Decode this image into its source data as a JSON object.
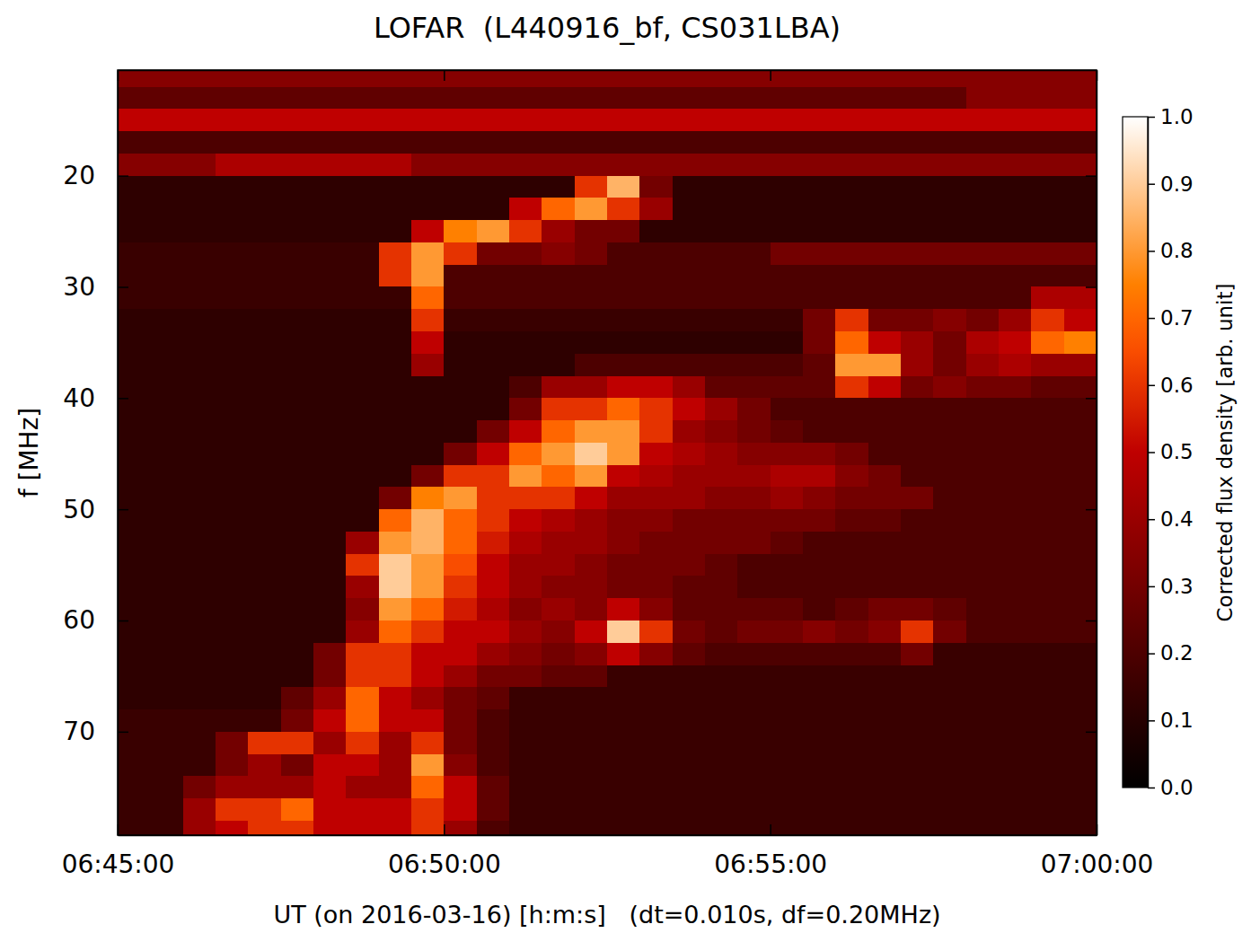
{
  "chart_data": {
    "type": "heatmap",
    "title": "LOFAR  (L440916_bf, CS031LBA)",
    "x_label": "UT (on 2016-03-16) [h:m:s]   (dt=0.010s, df=0.20MHz)",
    "y_label": "f [MHz]",
    "xlim": [
      "06:45:00",
      "07:00:00"
    ],
    "xticks": [
      "06:45:00",
      "06:50:00",
      "06:55:00",
      "07:00:00"
    ],
    "ylim": [
      79.3,
      10.5
    ],
    "yticks": [
      20,
      30,
      40,
      50,
      60,
      70
    ],
    "x_bins": [
      "06:45:00",
      "06:45:30",
      "06:46:00",
      "06:46:30",
      "06:47:00",
      "06:47:30",
      "06:48:00",
      "06:48:30",
      "06:49:00",
      "06:49:30",
      "06:50:00",
      "06:50:30",
      "06:51:00",
      "06:51:30",
      "06:52:00",
      "06:52:30",
      "06:53:00",
      "06:53:30",
      "06:54:00",
      "06:54:30",
      "06:55:00",
      "06:55:30",
      "06:56:00",
      "06:56:30",
      "06:57:00",
      "06:57:30",
      "06:58:00",
      "06:58:30",
      "06:59:00",
      "06:59:30",
      "07:00:00"
    ],
    "y_bins": [
      10,
      12,
      14,
      16,
      18,
      20,
      22,
      24,
      26,
      28,
      30,
      32,
      34,
      36,
      38,
      40,
      42,
      44,
      46,
      48,
      50,
      52,
      54,
      56,
      58,
      60,
      62,
      64,
      66,
      68,
      70,
      72,
      74,
      76,
      78,
      80
    ],
    "cells": [
      [
        0.35,
        0.35,
        0.35,
        0.35,
        0.35,
        0.35,
        0.35,
        0.35,
        0.35,
        0.35,
        0.35,
        0.35,
        0.35,
        0.35,
        0.35,
        0.35,
        0.35,
        0.35,
        0.35,
        0.35,
        0.35,
        0.35,
        0.35,
        0.35,
        0.35,
        0.35,
        0.35,
        0.35,
        0.35,
        0.35
      ],
      [
        0.25,
        0.25,
        0.25,
        0.25,
        0.25,
        0.25,
        0.25,
        0.25,
        0.25,
        0.25,
        0.25,
        0.25,
        0.25,
        0.25,
        0.25,
        0.25,
        0.25,
        0.25,
        0.25,
        0.25,
        0.25,
        0.25,
        0.25,
        0.25,
        0.25,
        0.25,
        0.35,
        0.35,
        0.35,
        0.35
      ],
      [
        0.5,
        0.5,
        0.5,
        0.5,
        0.5,
        0.5,
        0.5,
        0.5,
        0.5,
        0.5,
        0.5,
        0.5,
        0.5,
        0.5,
        0.5,
        0.5,
        0.5,
        0.5,
        0.5,
        0.5,
        0.5,
        0.5,
        0.5,
        0.5,
        0.5,
        0.5,
        0.5,
        0.5,
        0.5,
        0.5
      ],
      [
        0.2,
        0.2,
        0.2,
        0.2,
        0.2,
        0.2,
        0.2,
        0.2,
        0.2,
        0.2,
        0.2,
        0.2,
        0.2,
        0.2,
        0.2,
        0.2,
        0.2,
        0.2,
        0.2,
        0.2,
        0.2,
        0.2,
        0.2,
        0.2,
        0.2,
        0.2,
        0.2,
        0.2,
        0.2,
        0.2
      ],
      [
        0.35,
        0.35,
        0.35,
        0.45,
        0.45,
        0.45,
        0.45,
        0.45,
        0.45,
        0.35,
        0.35,
        0.35,
        0.35,
        0.35,
        0.35,
        0.35,
        0.35,
        0.35,
        0.35,
        0.35,
        0.35,
        0.35,
        0.35,
        0.35,
        0.35,
        0.35,
        0.35,
        0.35,
        0.35,
        0.35
      ],
      [
        0.12,
        0.12,
        0.12,
        0.12,
        0.12,
        0.12,
        0.12,
        0.12,
        0.12,
        0.12,
        0.12,
        0.12,
        0.12,
        0.12,
        0.6,
        0.85,
        0.3,
        0.12,
        0.12,
        0.12,
        0.12,
        0.12,
        0.12,
        0.12,
        0.12,
        0.12,
        0.12,
        0.12,
        0.12,
        0.12
      ],
      [
        0.12,
        0.12,
        0.12,
        0.12,
        0.12,
        0.12,
        0.12,
        0.12,
        0.12,
        0.12,
        0.12,
        0.12,
        0.5,
        0.7,
        0.8,
        0.6,
        0.4,
        0.12,
        0.12,
        0.12,
        0.12,
        0.12,
        0.12,
        0.12,
        0.12,
        0.12,
        0.12,
        0.12,
        0.12,
        0.12
      ],
      [
        0.12,
        0.12,
        0.12,
        0.12,
        0.12,
        0.12,
        0.12,
        0.12,
        0.12,
        0.5,
        0.75,
        0.8,
        0.6,
        0.4,
        0.3,
        0.3,
        0.12,
        0.12,
        0.12,
        0.12,
        0.12,
        0.12,
        0.12,
        0.12,
        0.12,
        0.12,
        0.12,
        0.12,
        0.12,
        0.12
      ],
      [
        0.15,
        0.15,
        0.15,
        0.15,
        0.15,
        0.15,
        0.15,
        0.15,
        0.6,
        0.8,
        0.6,
        0.3,
        0.3,
        0.35,
        0.3,
        0.2,
        0.2,
        0.2,
        0.2,
        0.2,
        0.3,
        0.3,
        0.3,
        0.3,
        0.3,
        0.3,
        0.3,
        0.3,
        0.3,
        0.3
      ],
      [
        0.15,
        0.15,
        0.15,
        0.15,
        0.15,
        0.15,
        0.15,
        0.15,
        0.6,
        0.8,
        0.2,
        0.2,
        0.2,
        0.2,
        0.2,
        0.2,
        0.2,
        0.2,
        0.2,
        0.2,
        0.2,
        0.2,
        0.2,
        0.2,
        0.2,
        0.2,
        0.2,
        0.2,
        0.2,
        0.2
      ],
      [
        0.15,
        0.15,
        0.15,
        0.15,
        0.15,
        0.15,
        0.15,
        0.15,
        0.15,
        0.7,
        0.2,
        0.2,
        0.2,
        0.2,
        0.2,
        0.2,
        0.2,
        0.2,
        0.2,
        0.2,
        0.2,
        0.2,
        0.2,
        0.2,
        0.2,
        0.2,
        0.2,
        0.2,
        0.45,
        0.45
      ],
      [
        0.12,
        0.12,
        0.12,
        0.12,
        0.12,
        0.12,
        0.12,
        0.12,
        0.12,
        0.6,
        0.15,
        0.15,
        0.15,
        0.15,
        0.15,
        0.15,
        0.15,
        0.15,
        0.15,
        0.15,
        0.15,
        0.3,
        0.6,
        0.3,
        0.3,
        0.35,
        0.3,
        0.4,
        0.6,
        0.5
      ],
      [
        0.12,
        0.12,
        0.12,
        0.12,
        0.12,
        0.12,
        0.12,
        0.12,
        0.12,
        0.5,
        0.12,
        0.12,
        0.12,
        0.12,
        0.12,
        0.12,
        0.12,
        0.12,
        0.12,
        0.12,
        0.12,
        0.3,
        0.7,
        0.5,
        0.4,
        0.3,
        0.45,
        0.5,
        0.7,
        0.75
      ],
      [
        0.12,
        0.12,
        0.12,
        0.12,
        0.12,
        0.12,
        0.12,
        0.12,
        0.12,
        0.4,
        0.12,
        0.12,
        0.12,
        0.12,
        0.2,
        0.2,
        0.2,
        0.2,
        0.2,
        0.2,
        0.2,
        0.25,
        0.8,
        0.8,
        0.4,
        0.3,
        0.4,
        0.45,
        0.4,
        0.4
      ],
      [
        0.12,
        0.12,
        0.12,
        0.12,
        0.12,
        0.12,
        0.12,
        0.12,
        0.12,
        0.12,
        0.12,
        0.12,
        0.2,
        0.4,
        0.4,
        0.5,
        0.5,
        0.4,
        0.25,
        0.25,
        0.25,
        0.25,
        0.6,
        0.5,
        0.3,
        0.35,
        0.3,
        0.3,
        0.25,
        0.25
      ],
      [
        0.12,
        0.12,
        0.12,
        0.12,
        0.12,
        0.12,
        0.12,
        0.12,
        0.12,
        0.12,
        0.12,
        0.12,
        0.3,
        0.6,
        0.6,
        0.7,
        0.6,
        0.5,
        0.4,
        0.3,
        0.2,
        0.2,
        0.2,
        0.2,
        0.2,
        0.2,
        0.2,
        0.2,
        0.2,
        0.2
      ],
      [
        0.12,
        0.12,
        0.12,
        0.12,
        0.12,
        0.12,
        0.12,
        0.12,
        0.12,
        0.12,
        0.12,
        0.3,
        0.5,
        0.7,
        0.8,
        0.8,
        0.6,
        0.4,
        0.35,
        0.3,
        0.25,
        0.2,
        0.2,
        0.2,
        0.2,
        0.2,
        0.2,
        0.2,
        0.2,
        0.2
      ],
      [
        0.12,
        0.12,
        0.12,
        0.12,
        0.12,
        0.12,
        0.12,
        0.12,
        0.12,
        0.12,
        0.3,
        0.5,
        0.7,
        0.8,
        0.9,
        0.8,
        0.5,
        0.45,
        0.4,
        0.35,
        0.35,
        0.35,
        0.3,
        0.2,
        0.2,
        0.2,
        0.2,
        0.2,
        0.2,
        0.2
      ],
      [
        0.12,
        0.12,
        0.12,
        0.12,
        0.12,
        0.12,
        0.12,
        0.12,
        0.12,
        0.3,
        0.6,
        0.6,
        0.8,
        0.7,
        0.8,
        0.5,
        0.45,
        0.4,
        0.4,
        0.4,
        0.45,
        0.45,
        0.35,
        0.3,
        0.2,
        0.2,
        0.2,
        0.2,
        0.2,
        0.2
      ],
      [
        0.12,
        0.12,
        0.12,
        0.12,
        0.12,
        0.12,
        0.12,
        0.12,
        0.3,
        0.75,
        0.8,
        0.6,
        0.6,
        0.6,
        0.5,
        0.4,
        0.4,
        0.4,
        0.35,
        0.35,
        0.4,
        0.35,
        0.3,
        0.3,
        0.3,
        0.2,
        0.2,
        0.2,
        0.2,
        0.2
      ],
      [
        0.12,
        0.12,
        0.12,
        0.12,
        0.12,
        0.12,
        0.12,
        0.12,
        0.7,
        0.85,
        0.7,
        0.6,
        0.5,
        0.45,
        0.4,
        0.35,
        0.35,
        0.3,
        0.3,
        0.3,
        0.3,
        0.3,
        0.25,
        0.25,
        0.2,
        0.2,
        0.2,
        0.2,
        0.2,
        0.2
      ],
      [
        0.12,
        0.12,
        0.12,
        0.12,
        0.12,
        0.12,
        0.12,
        0.4,
        0.8,
        0.85,
        0.7,
        0.55,
        0.45,
        0.4,
        0.4,
        0.35,
        0.3,
        0.3,
        0.3,
        0.3,
        0.25,
        0.2,
        0.2,
        0.2,
        0.2,
        0.2,
        0.2,
        0.2,
        0.2,
        0.2
      ],
      [
        0.12,
        0.12,
        0.12,
        0.12,
        0.12,
        0.12,
        0.12,
        0.6,
        0.9,
        0.8,
        0.65,
        0.5,
        0.4,
        0.4,
        0.35,
        0.3,
        0.3,
        0.3,
        0.25,
        0.2,
        0.2,
        0.2,
        0.2,
        0.2,
        0.2,
        0.2,
        0.2,
        0.2,
        0.2,
        0.2
      ],
      [
        0.12,
        0.12,
        0.12,
        0.12,
        0.12,
        0.12,
        0.12,
        0.4,
        0.9,
        0.8,
        0.6,
        0.5,
        0.4,
        0.35,
        0.35,
        0.3,
        0.3,
        0.25,
        0.25,
        0.2,
        0.2,
        0.2,
        0.2,
        0.2,
        0.2,
        0.2,
        0.2,
        0.2,
        0.2,
        0.2
      ],
      [
        0.12,
        0.12,
        0.12,
        0.12,
        0.12,
        0.12,
        0.12,
        0.35,
        0.8,
        0.7,
        0.55,
        0.45,
        0.35,
        0.4,
        0.35,
        0.5,
        0.35,
        0.25,
        0.25,
        0.25,
        0.25,
        0.2,
        0.25,
        0.3,
        0.3,
        0.25,
        0.2,
        0.2,
        0.2,
        0.2
      ],
      [
        0.12,
        0.12,
        0.12,
        0.12,
        0.12,
        0.12,
        0.12,
        0.4,
        0.7,
        0.6,
        0.5,
        0.5,
        0.4,
        0.35,
        0.5,
        0.9,
        0.6,
        0.3,
        0.25,
        0.3,
        0.3,
        0.35,
        0.3,
        0.35,
        0.6,
        0.3,
        0.2,
        0.2,
        0.2,
        0.2
      ],
      [
        0.12,
        0.12,
        0.12,
        0.12,
        0.12,
        0.12,
        0.3,
        0.6,
        0.6,
        0.5,
        0.5,
        0.4,
        0.35,
        0.3,
        0.35,
        0.5,
        0.35,
        0.25,
        0.2,
        0.2,
        0.2,
        0.2,
        0.2,
        0.2,
        0.3,
        0.15,
        0.15,
        0.15,
        0.15,
        0.15
      ],
      [
        0.12,
        0.12,
        0.12,
        0.12,
        0.12,
        0.12,
        0.3,
        0.6,
        0.6,
        0.5,
        0.4,
        0.3,
        0.3,
        0.25,
        0.25,
        0.15,
        0.15,
        0.15,
        0.15,
        0.15,
        0.15,
        0.15,
        0.15,
        0.15,
        0.15,
        0.15,
        0.15,
        0.15,
        0.15,
        0.15
      ],
      [
        0.12,
        0.12,
        0.12,
        0.12,
        0.12,
        0.25,
        0.4,
        0.7,
        0.5,
        0.4,
        0.3,
        0.25,
        0.15,
        0.15,
        0.15,
        0.15,
        0.15,
        0.15,
        0.15,
        0.15,
        0.15,
        0.15,
        0.15,
        0.15,
        0.15,
        0.15,
        0.15,
        0.15,
        0.15,
        0.15
      ],
      [
        0.15,
        0.15,
        0.15,
        0.15,
        0.15,
        0.3,
        0.5,
        0.7,
        0.5,
        0.5,
        0.3,
        0.2,
        0.15,
        0.15,
        0.15,
        0.15,
        0.15,
        0.15,
        0.15,
        0.15,
        0.15,
        0.15,
        0.15,
        0.15,
        0.15,
        0.15,
        0.15,
        0.15,
        0.15,
        0.15
      ],
      [
        0.15,
        0.15,
        0.15,
        0.3,
        0.6,
        0.6,
        0.4,
        0.6,
        0.4,
        0.6,
        0.3,
        0.2,
        0.15,
        0.15,
        0.15,
        0.15,
        0.15,
        0.15,
        0.15,
        0.15,
        0.15,
        0.15,
        0.15,
        0.15,
        0.15,
        0.15,
        0.15,
        0.15,
        0.15,
        0.15
      ],
      [
        0.15,
        0.15,
        0.15,
        0.3,
        0.4,
        0.3,
        0.5,
        0.5,
        0.4,
        0.8,
        0.35,
        0.2,
        0.15,
        0.15,
        0.15,
        0.15,
        0.15,
        0.15,
        0.15,
        0.15,
        0.15,
        0.15,
        0.15,
        0.15,
        0.15,
        0.15,
        0.15,
        0.15,
        0.15,
        0.15
      ],
      [
        0.15,
        0.15,
        0.3,
        0.4,
        0.4,
        0.4,
        0.5,
        0.4,
        0.4,
        0.7,
        0.5,
        0.25,
        0.15,
        0.15,
        0.15,
        0.15,
        0.15,
        0.15,
        0.15,
        0.15,
        0.15,
        0.15,
        0.15,
        0.15,
        0.15,
        0.15,
        0.15,
        0.15,
        0.15,
        0.15
      ],
      [
        0.15,
        0.15,
        0.4,
        0.6,
        0.6,
        0.7,
        0.5,
        0.5,
        0.5,
        0.6,
        0.5,
        0.25,
        0.15,
        0.15,
        0.15,
        0.15,
        0.15,
        0.15,
        0.15,
        0.15,
        0.15,
        0.15,
        0.15,
        0.15,
        0.15,
        0.15,
        0.15,
        0.15,
        0.15,
        0.15
      ],
      [
        0.15,
        0.15,
        0.4,
        0.5,
        0.6,
        0.6,
        0.5,
        0.5,
        0.5,
        0.6,
        0.4,
        0.2,
        0.15,
        0.15,
        0.15,
        0.15,
        0.15,
        0.15,
        0.15,
        0.15,
        0.15,
        0.15,
        0.15,
        0.15,
        0.15,
        0.15,
        0.15,
        0.15,
        0.15,
        0.15
      ]
    ],
    "colorbar_label": "Corrected flux density [arb. unit]",
    "color_range": [
      0,
      1
    ],
    "color_ticks": [
      {
        "value": 0,
        "label": "0.0"
      },
      {
        "value": 0.1,
        "label": "0.1"
      },
      {
        "value": 0.2,
        "label": "0.2"
      },
      {
        "value": 0.3,
        "label": "0.3"
      },
      {
        "value": 0.4,
        "label": "0.4"
      },
      {
        "value": 0.5,
        "label": "0.5"
      },
      {
        "value": 0.6,
        "label": "0.6"
      },
      {
        "value": 0.7,
        "label": "0.7"
      },
      {
        "value": 0.8,
        "label": "0.8"
      },
      {
        "value": 0.9,
        "label": "0.9"
      },
      {
        "value": 1,
        "label": "1.0"
      }
    ]
  }
}
